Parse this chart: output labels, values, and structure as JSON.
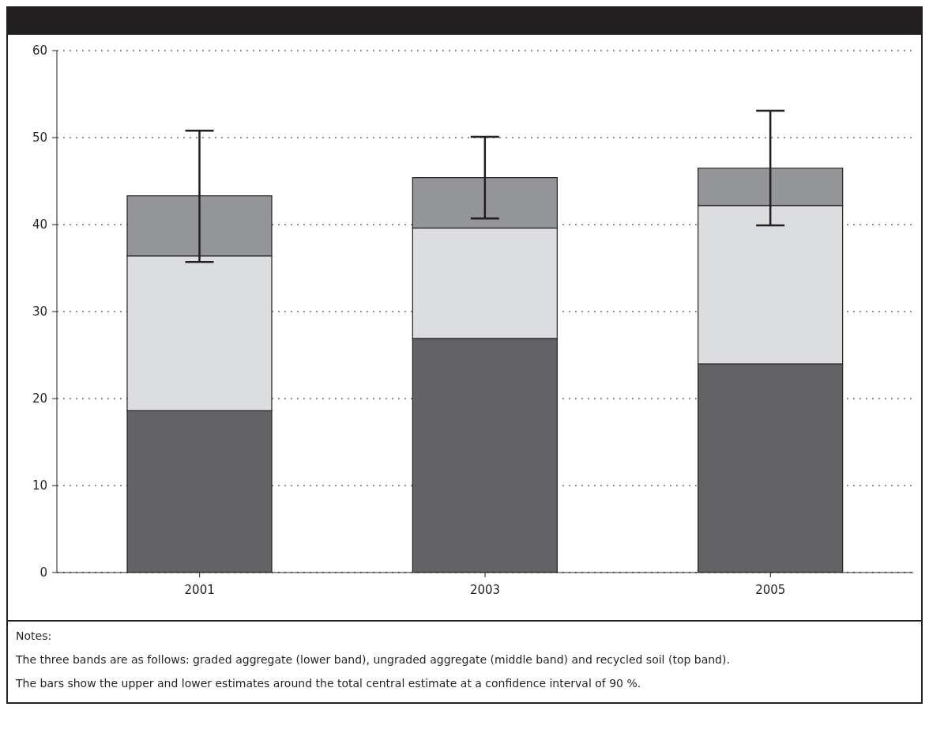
{
  "chart_data": {
    "type": "bar",
    "stacked": true,
    "categories": [
      "2001",
      "2003",
      "2005"
    ],
    "series": [
      {
        "color": "#636365",
        "values": [
          18.6,
          26.9,
          24.0
        ]
      },
      {
        "color": "#dcdddf",
        "values": [
          17.8,
          12.7,
          18.2
        ]
      },
      {
        "color": "#939598",
        "values": [
          6.9,
          5.8,
          4.3
        ],
        "errors": [
          [
            35.7,
            50.8
          ],
          [
            40.7,
            50.1
          ],
          [
            39.9,
            53.1
          ]
        ]
      }
    ],
    "ylim": [
      0,
      60
    ],
    "yticks": [
      0,
      10,
      20,
      30,
      40,
      50,
      60
    ],
    "grid": "y",
    "legend": false,
    "annotations": [
      "Notes:",
      "The three bands are as follows: graded aggregate (lower band), ungraded aggregate (middle band) and recycled soil (top band).",
      "The bars show the upper and lower estimates around the total central estimate at a confidence interval of 90 %."
    ]
  }
}
